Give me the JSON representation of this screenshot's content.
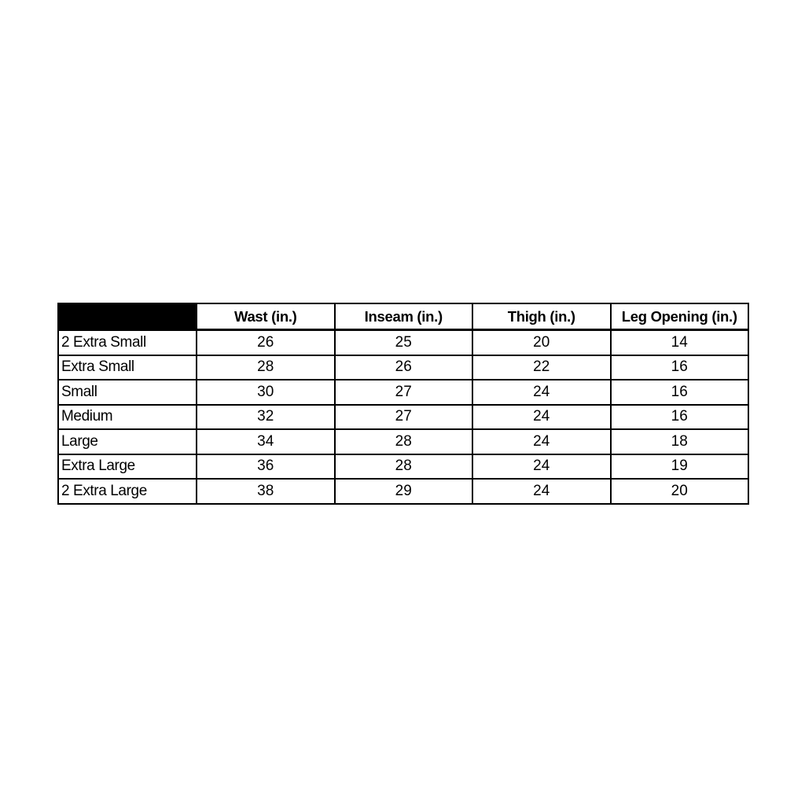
{
  "table": {
    "columns": [
      "",
      "Wast (in.)",
      "Inseam (in.)",
      "Thigh (in.)",
      "Leg Opening (in.)"
    ],
    "rows": [
      {
        "size": "2 Extra Small",
        "values": [
          "26",
          "25",
          "20",
          "14"
        ]
      },
      {
        "size": "Extra Small",
        "values": [
          "28",
          "26",
          "22",
          "16"
        ]
      },
      {
        "size": "Small",
        "values": [
          "30",
          "27",
          "24",
          "16"
        ]
      },
      {
        "size": "Medium",
        "values": [
          "32",
          "27",
          "24",
          "16"
        ]
      },
      {
        "size": "Large",
        "values": [
          "34",
          "28",
          "24",
          "18"
        ]
      },
      {
        "size": "Extra Large",
        "values": [
          "36",
          "28",
          "24",
          "19"
        ]
      },
      {
        "size": "2 Extra Large",
        "values": [
          "38",
          "29",
          "24",
          "20"
        ]
      }
    ],
    "header_corner_color": "#000000"
  }
}
